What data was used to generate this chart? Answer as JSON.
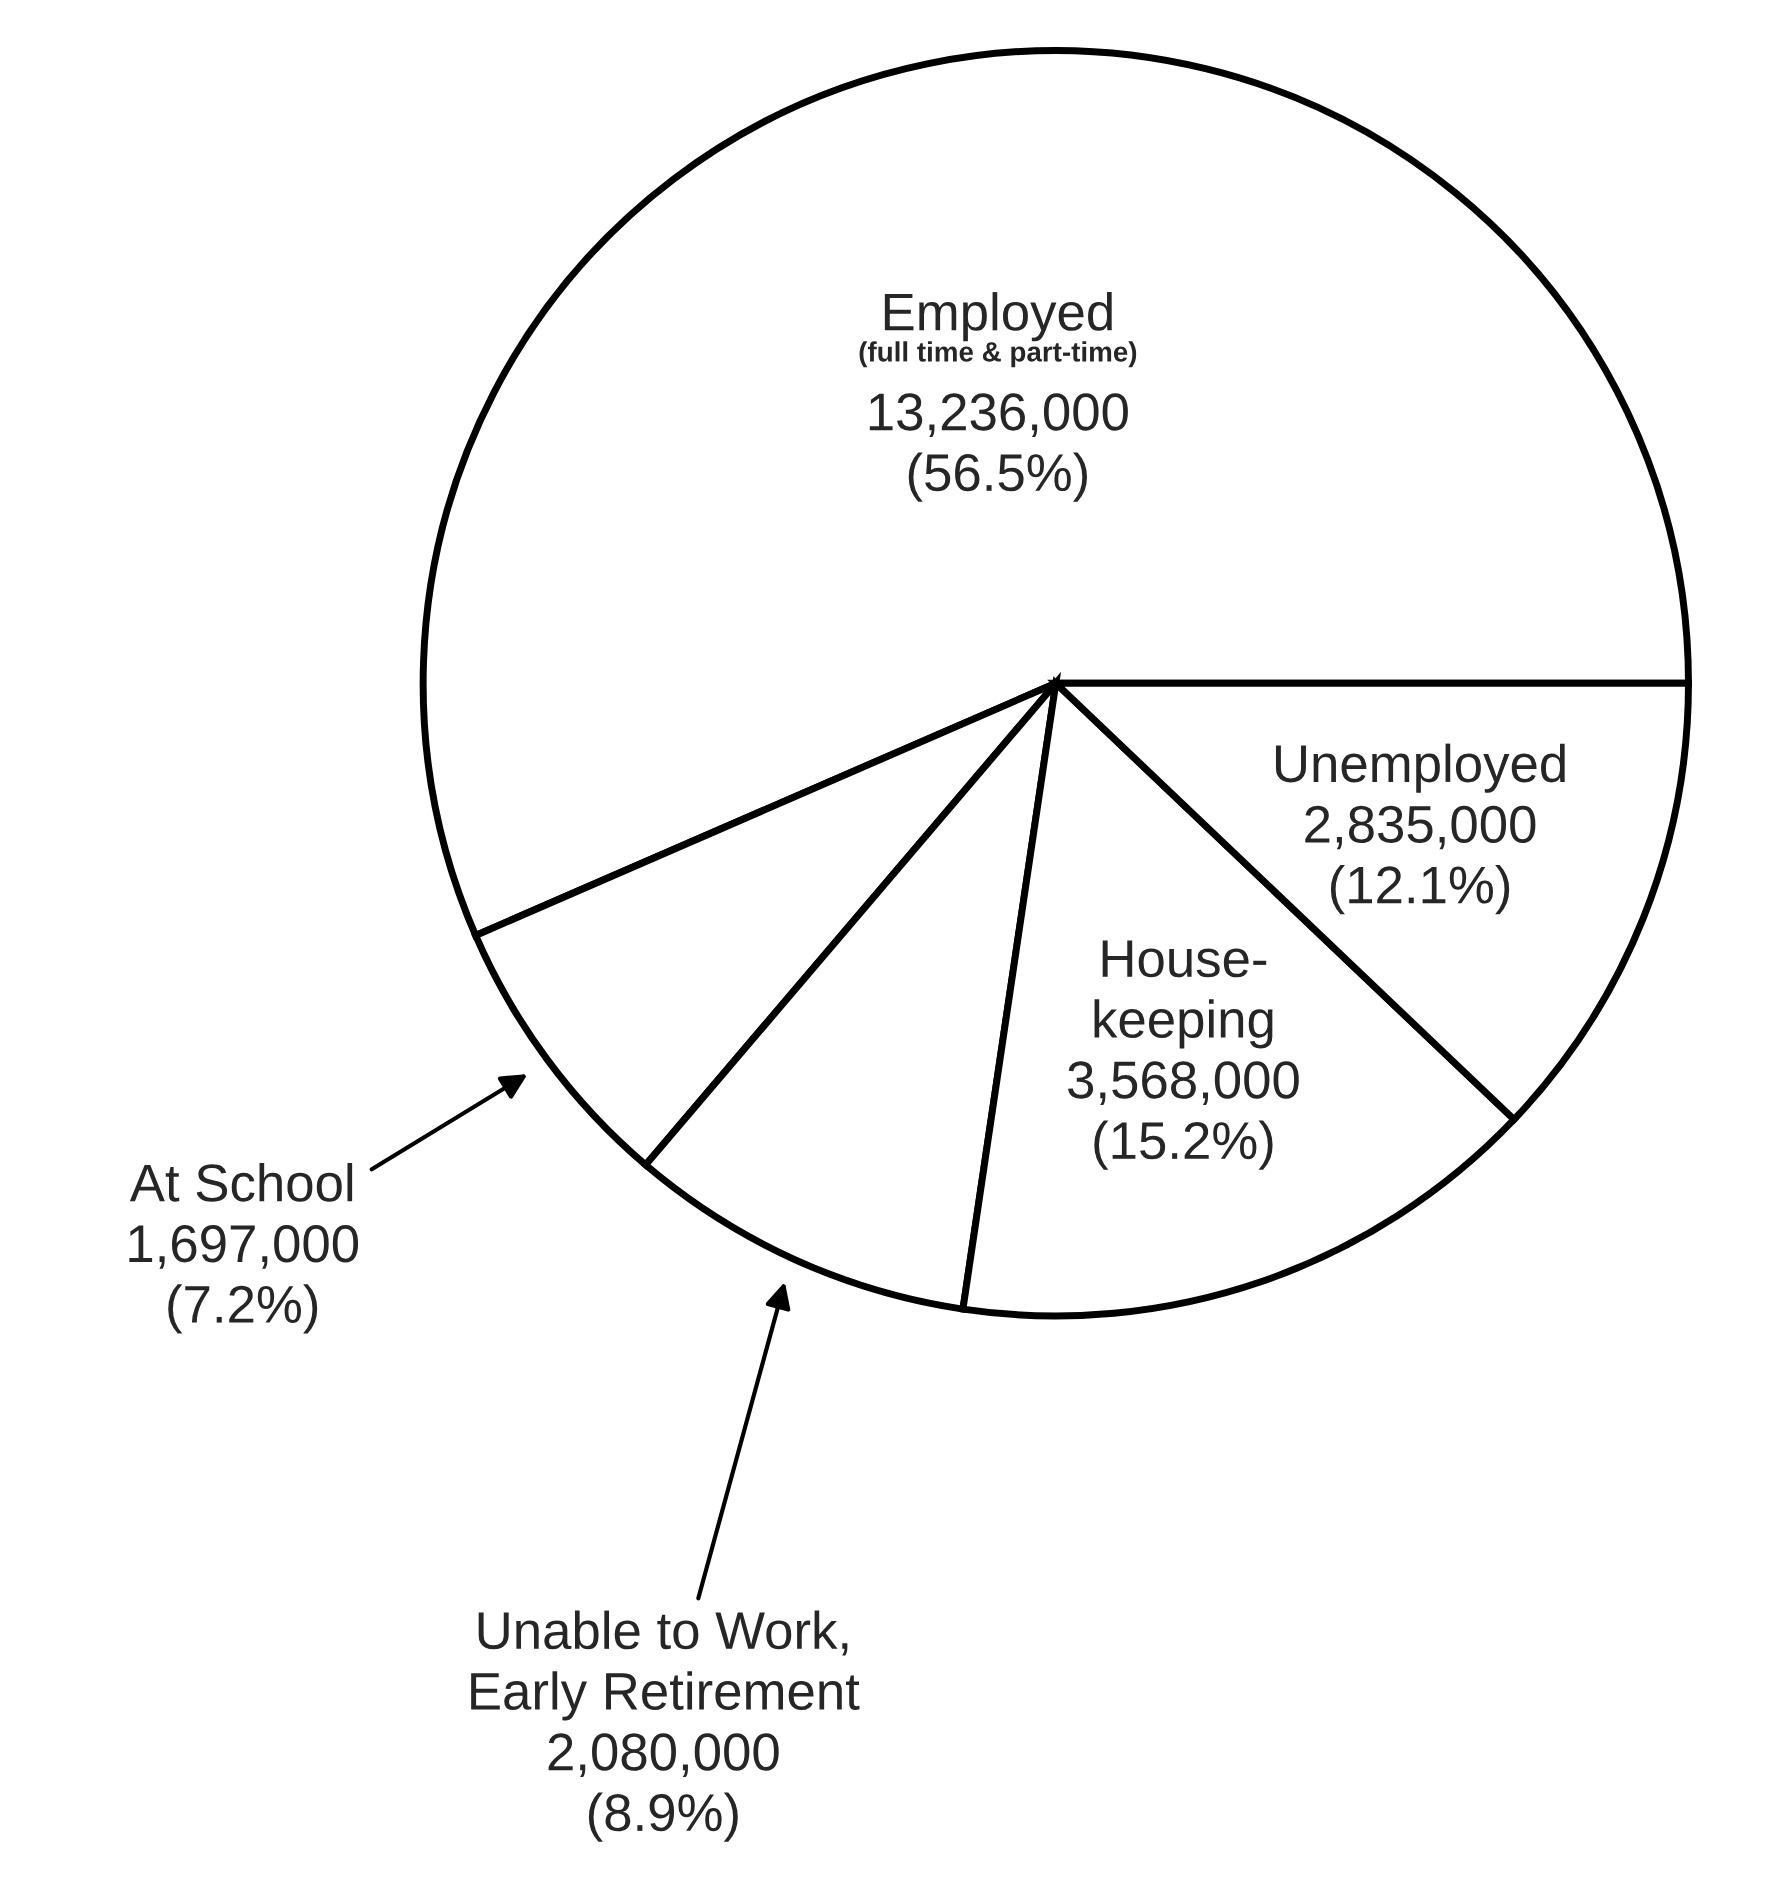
{
  "chart_data": {
    "type": "pie",
    "categories": [
      "Employed",
      "At School",
      "Unable to Work,\nEarly Retirement",
      "House-\nkeeping",
      "Unemployed"
    ],
    "values": [
      13236000,
      1697000,
      2080000,
      3568000,
      2835000
    ],
    "value_labels": [
      "13,236,000\n(56.5%)",
      "1,697,000\n(7.2%)",
      "2,080,000\n(8.9%)",
      "3,568,000\n(15.2%)",
      "2,835,000\n(12.1%)"
    ],
    "colors": [
      "#ffffff",
      "#ffffff",
      "#ffffff",
      "#ffffff",
      "#ffffff"
    ],
    "annotations": [
      "(full time & part-time)"
    ]
  }
}
